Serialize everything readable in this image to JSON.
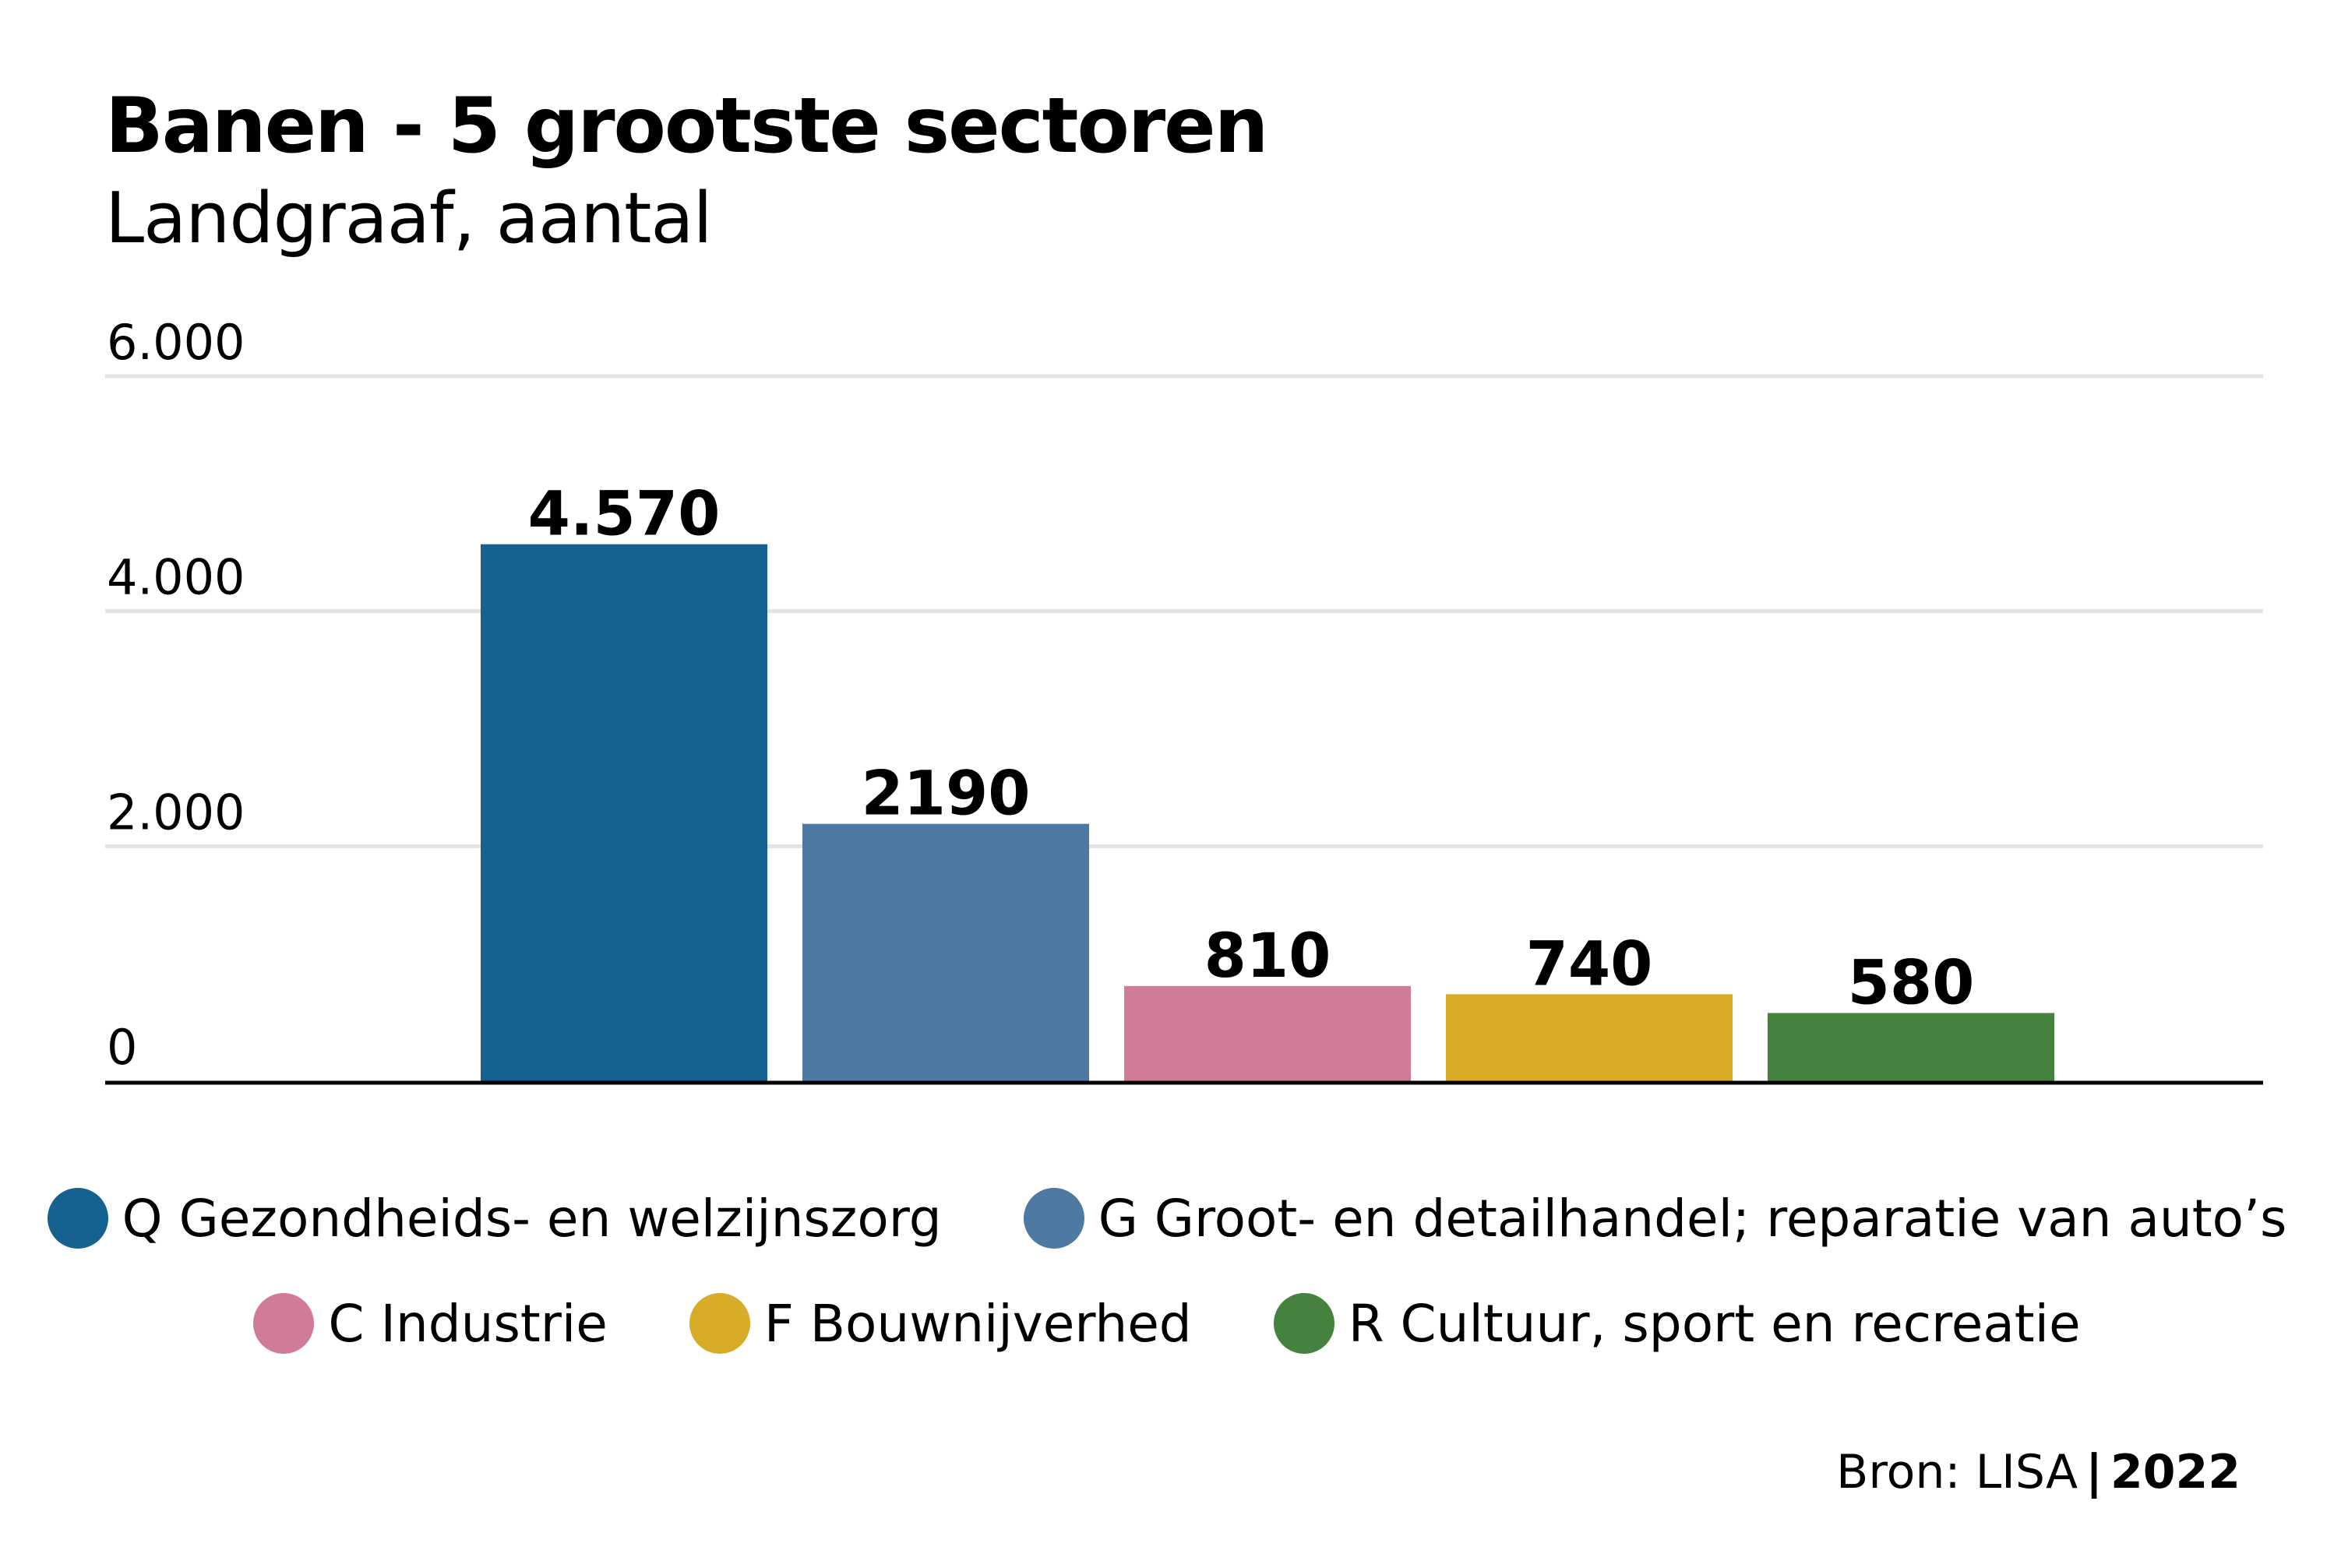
{
  "chart_data": {
    "type": "bar",
    "title": "Banen - 5 grootste sectoren",
    "subtitle": "Landgraaf, aantal",
    "xlabel": "",
    "ylabel": "",
    "ylim": [
      0,
      6000
    ],
    "yticks": [
      0,
      2000,
      4000,
      6000
    ],
    "ytick_labels": [
      "0",
      "2.000",
      "4.000",
      "6.000"
    ],
    "grid": true,
    "legend_position": "bottom",
    "categories": [
      "Q Gezondheids- en welzijnszorg",
      "G Groot- en detailhandel; reparatie van auto’s",
      "C Industrie",
      "F Bouwnijverhed",
      "R Cultuur, sport en recreatie"
    ],
    "values": [
      4570,
      2190,
      810,
      740,
      580
    ],
    "data_labels": [
      "4.570",
      "2190",
      "810",
      "740",
      "580"
    ],
    "colors": [
      "#156290",
      "#4e79a3",
      "#d07b99",
      "#d9ac28",
      "#45823d"
    ]
  },
  "legend": [
    {
      "label": "Q Gezondheids- en welzijnszorg",
      "color": "#156290"
    },
    {
      "label": "G Groot- en detailhandel; reparatie van auto’s",
      "color": "#4e79a3"
    },
    {
      "label": "C Industrie",
      "color": "#d07b99"
    },
    {
      "label": "F Bouwnijverhed",
      "color": "#d9ac28"
    },
    {
      "label": "R Cultuur, sport en recreatie",
      "color": "#45823d"
    }
  ],
  "source": {
    "text": "Bron: LISA",
    "separator": "|",
    "year": "2022"
  }
}
